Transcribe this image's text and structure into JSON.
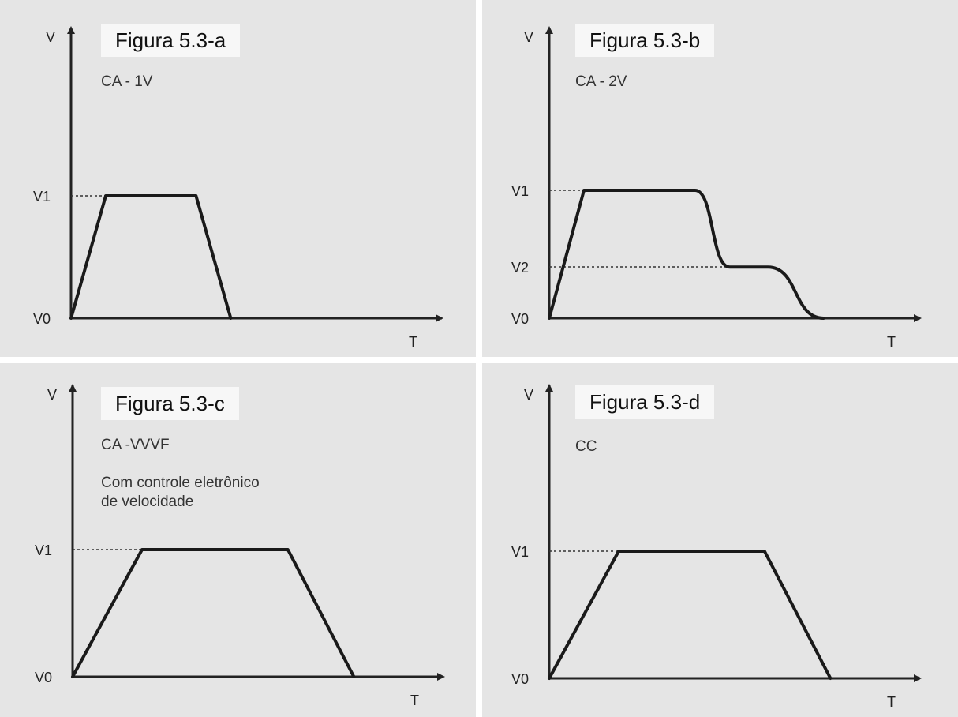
{
  "chart_data": [
    {
      "type": "line",
      "figure_label": "Figura 5.3-a",
      "subtitle": "CA - 1V",
      "note": "",
      "xlabel": "T",
      "ylabel": "V",
      "y_levels": [
        "V0",
        "V1"
      ],
      "xlim": [
        0,
        10
      ],
      "ylim": [
        0,
        3
      ],
      "points": [
        [
          0,
          0
        ],
        [
          1,
          2
        ],
        [
          3.6,
          2
        ],
        [
          4.6,
          0
        ]
      ],
      "curve": "linear"
    },
    {
      "type": "line",
      "figure_label": "Figura 5.3-b",
      "subtitle": "CA - 2V",
      "note": "",
      "xlabel": "T",
      "ylabel": "V",
      "y_levels": [
        "V0",
        "V2",
        "V1"
      ],
      "xlim": [
        0,
        10
      ],
      "ylim": [
        0,
        3
      ],
      "points": [
        [
          0,
          0
        ],
        [
          1,
          2
        ],
        [
          4.2,
          2
        ],
        [
          5.2,
          0.8
        ],
        [
          6.3,
          0.8
        ],
        [
          7.9,
          0
        ]
      ],
      "curve": "smooth"
    },
    {
      "type": "line",
      "figure_label": "Figura 5.3-c",
      "subtitle": "CA -VVVF",
      "note": "Com controle eletrônico\nde velocidade",
      "xlabel": "T",
      "ylabel": "V",
      "y_levels": [
        "V0",
        "V1"
      ],
      "xlim": [
        0,
        10
      ],
      "ylim": [
        0,
        3
      ],
      "points": [
        [
          0,
          0
        ],
        [
          2,
          1.6
        ],
        [
          6.2,
          1.6
        ],
        [
          8.1,
          0
        ]
      ],
      "curve": "linear"
    },
    {
      "type": "line",
      "figure_label": "Figura 5.3-d",
      "subtitle": "CC",
      "note": "",
      "xlabel": "T",
      "ylabel": "V",
      "y_levels": [
        "V0",
        "V1"
      ],
      "xlim": [
        0,
        10
      ],
      "ylim": [
        0,
        3
      ],
      "points": [
        [
          0,
          0
        ],
        [
          2,
          1.6
        ],
        [
          6.2,
          1.6
        ],
        [
          8.1,
          0
        ]
      ],
      "curve": "linear"
    }
  ]
}
